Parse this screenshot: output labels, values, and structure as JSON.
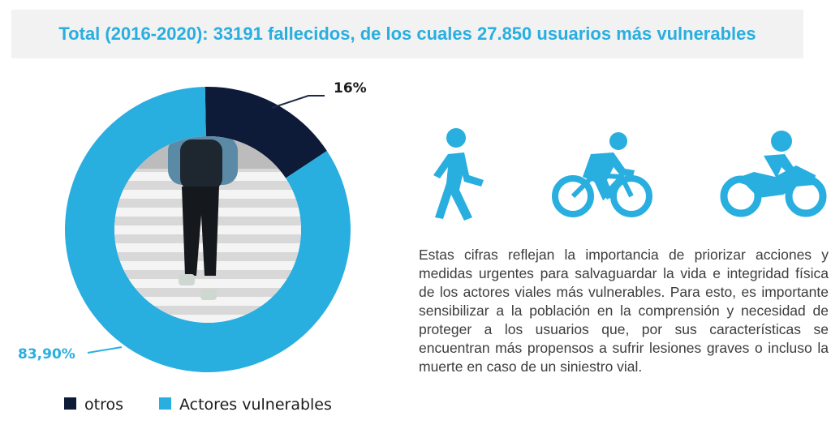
{
  "header": {
    "title": "Total (2016-2020): 33191 fallecidos, de los cuales 27.850 usuarios más vulnerables"
  },
  "colors": {
    "accent": "#29aee0",
    "dark": "#0d1b38",
    "banner_bg": "#f2f2f2"
  },
  "chart_data": {
    "type": "pie",
    "donut": true,
    "slices": [
      {
        "name": "otros",
        "value": 16,
        "label": "16%",
        "color": "#0d1b38"
      },
      {
        "name": "Actores vulnerables",
        "value": 83.9,
        "label": "83,90%",
        "color": "#29aee0"
      }
    ],
    "legend": [
      "otros",
      "Actores vulnerables"
    ],
    "legend_position": "bottom",
    "center_image": "pedestrian-crosswalk-photo"
  },
  "icons": [
    "pedestrian-icon",
    "cyclist-icon",
    "motorcyclist-icon"
  ],
  "body": {
    "paragraph": "Estas cifras reflejan la importancia de priorizar acciones y medidas urgentes para salvaguardar la vida e integridad física de los actores viales más vulnerables. Para esto, es importante sensibilizar a la población en la comprensión y necesidad de proteger a los usuarios que, por sus características se encuentran más propensos a sufrir lesiones graves o incluso la muerte en caso de un siniestro vial."
  }
}
